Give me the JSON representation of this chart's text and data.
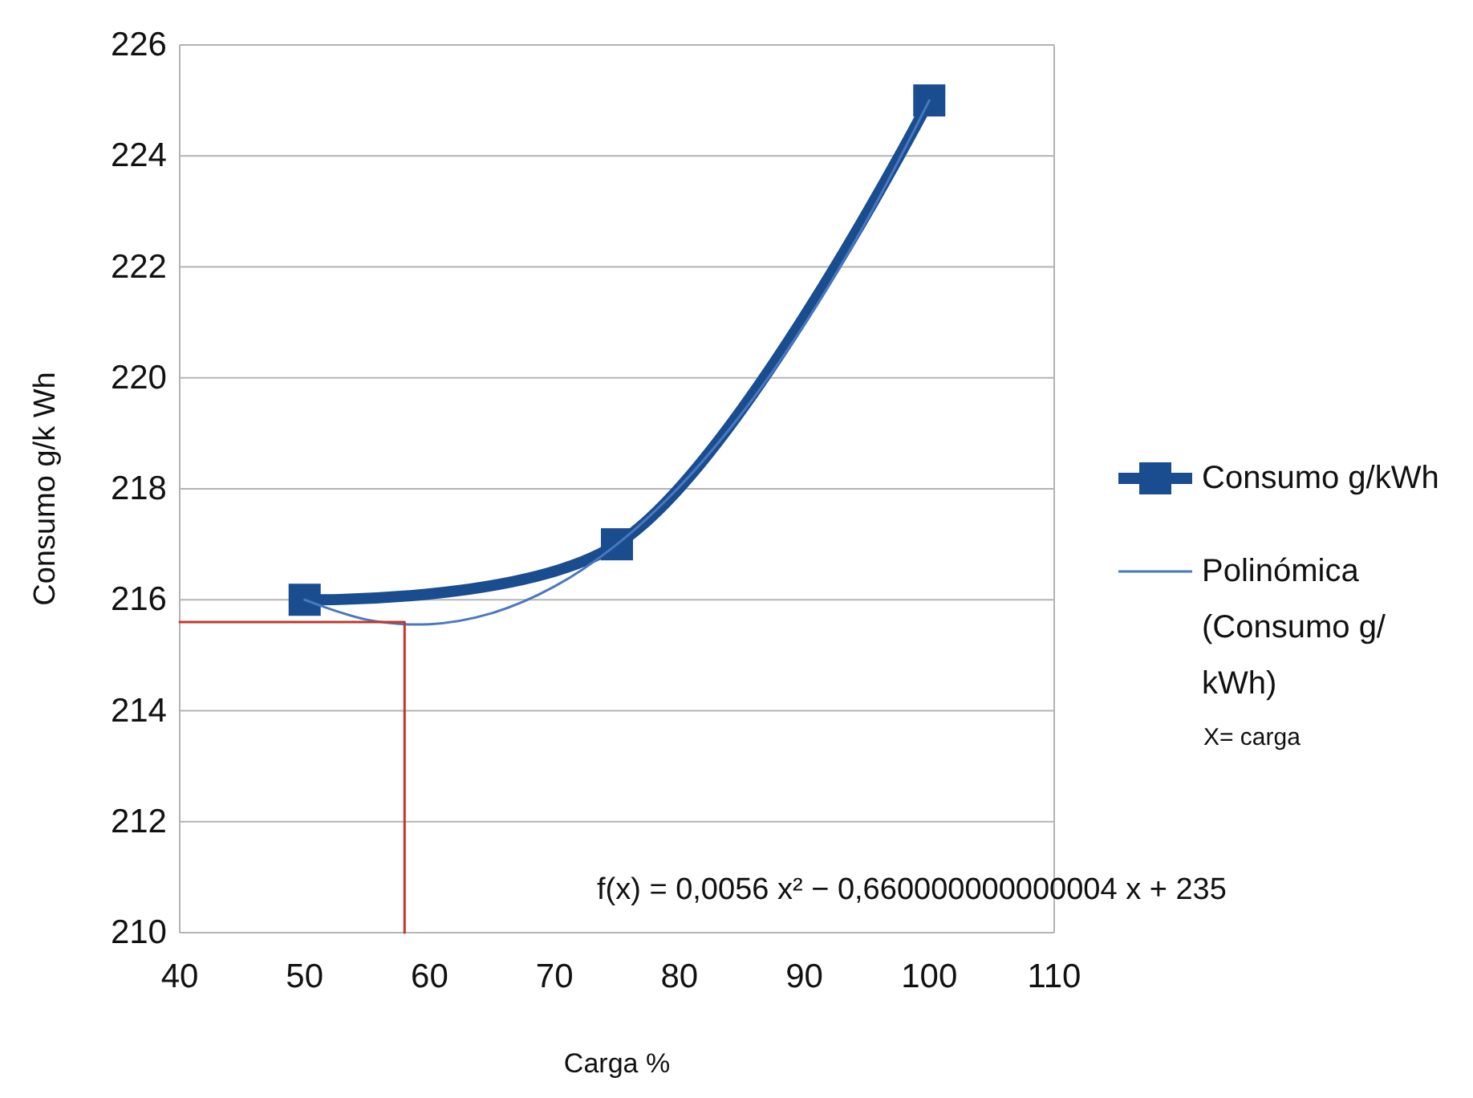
{
  "chart_data": {
    "type": "line",
    "xlabel": "Carga %",
    "ylabel": "Consumo g/k Wh",
    "xlim": [
      40,
      110
    ],
    "xticks": [
      40,
      50,
      60,
      70,
      80,
      90,
      100,
      110
    ],
    "ylim": [
      210,
      226
    ],
    "yticks": [
      210,
      212,
      214,
      216,
      218,
      220,
      222,
      224,
      226
    ],
    "grid": "y",
    "legend": "right",
    "line_style": "solid",
    "series": [
      {
        "name": "Consumo g/kWh",
        "color": "#1a4d8f",
        "marker": "square",
        "x": [
          50,
          75,
          100
        ],
        "values": [
          216,
          217,
          225
        ]
      },
      {
        "name": "Polinómica (Consumo g/kWh)",
        "color": "#4a78c0",
        "marker": "none",
        "x": [
          50,
          55,
          60,
          65,
          70,
          75,
          80,
          85,
          90,
          95,
          100
        ],
        "values": [
          216,
          215.64,
          215.56,
          215.76,
          216.24,
          217,
          218.04,
          219.36,
          220.96,
          222.84,
          225
        ]
      },
      {
        "color": "#c0392b",
        "marker": "none",
        "x": [
          40,
          58,
          58
        ],
        "values": [
          215.6,
          215.6,
          210
        ]
      }
    ],
    "annotations": [
      "X= carga",
      "f(x) = 0,0056 x² − 0,660000000000004 x + 235"
    ]
  }
}
